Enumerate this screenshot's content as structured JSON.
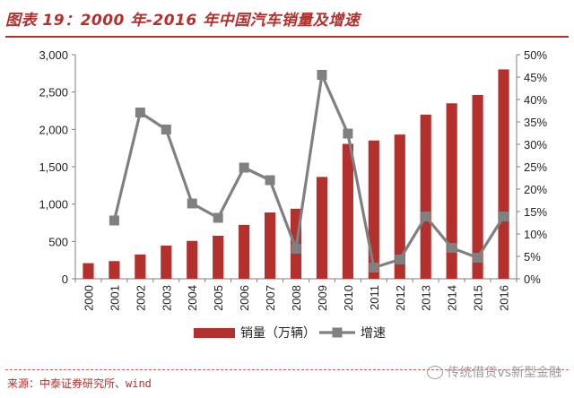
{
  "header": {
    "title": "图表 19：2000 年-2016 年中国汽车销量及增速"
  },
  "footer": {
    "source": "来源：中泰证券研究所、wind",
    "watermark": "传统借贷vs新型金融"
  },
  "colors": {
    "bar": "#b4302c",
    "line": "#808080",
    "accent": "#b4302c"
  },
  "chart_data": {
    "type": "bar",
    "categories": [
      "2000",
      "2001",
      "2002",
      "2003",
      "2004",
      "2005",
      "2006",
      "2007",
      "2008",
      "2009",
      "2010",
      "2011",
      "2012",
      "2013",
      "2014",
      "2015",
      "2016"
    ],
    "series": [
      {
        "name": "销量（万辆）",
        "type": "bar",
        "axis": "left",
        "values": [
          209,
          237,
          325,
          444,
          507,
          576,
          722,
          888,
          938,
          1364,
          1806,
          1851,
          1931,
          2198,
          2349,
          2460,
          2803
        ]
      },
      {
        "name": "增速",
        "type": "line",
        "axis": "right",
        "values": [
          null,
          13.0,
          37.1,
          33.3,
          16.8,
          13.6,
          24.8,
          22.0,
          6.7,
          45.5,
          32.4,
          2.5,
          4.3,
          13.9,
          6.9,
          4.7,
          13.9
        ]
      }
    ],
    "left_axis": {
      "min": 0,
      "max": 3000,
      "ticks": [
        "0",
        "500",
        "1,000",
        "1,500",
        "2,000",
        "2,500",
        "3,000"
      ]
    },
    "right_axis": {
      "min": 0,
      "max": 50,
      "ticks": [
        "0%",
        "5%",
        "10%",
        "15%",
        "20%",
        "25%",
        "30%",
        "35%",
        "40%",
        "45%",
        "50%"
      ]
    },
    "grid": false,
    "legend_position": "bottom"
  }
}
